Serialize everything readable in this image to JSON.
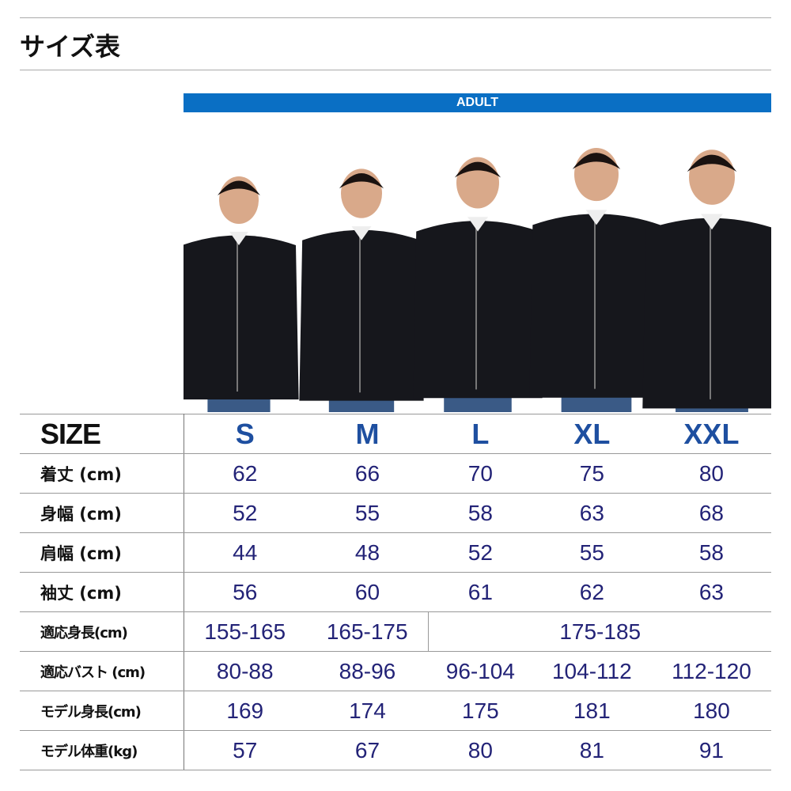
{
  "title": "サイズ表",
  "band_label": "ADULT",
  "sizes_label": "SIZE",
  "sizes": [
    "S",
    "M",
    "L",
    "XL",
    "XXL"
  ],
  "rows": [
    {
      "label": "着丈 (cm)",
      "values": [
        "62",
        "66",
        "70",
        "75",
        "80"
      ]
    },
    {
      "label": "身幅 (cm)",
      "values": [
        "52",
        "55",
        "58",
        "63",
        "68"
      ]
    },
    {
      "label": "肩幅 (cm)",
      "values": [
        "44",
        "48",
        "52",
        "55",
        "58"
      ]
    },
    {
      "label": "袖丈 (cm)",
      "values": [
        "56",
        "60",
        "61",
        "62",
        "63"
      ]
    },
    {
      "label": "適応身長(cm)",
      "values": [
        "155-165",
        "165-175",
        "175-185"
      ]
    },
    {
      "label": "適応バスト (cm)",
      "values": [
        "80-88",
        "88-96",
        "96-104",
        "104-112",
        "112-120"
      ]
    },
    {
      "label": "モデル身長(cm)",
      "values": [
        "169",
        "174",
        "175",
        "181",
        "180"
      ]
    },
    {
      "label": "モデル体重(kg)",
      "values": [
        "57",
        "67",
        "80",
        "81",
        "91"
      ]
    }
  ],
  "colors": {
    "band": "#0a6fc4",
    "size_header": "#1e4fa0",
    "values": "#232377"
  }
}
